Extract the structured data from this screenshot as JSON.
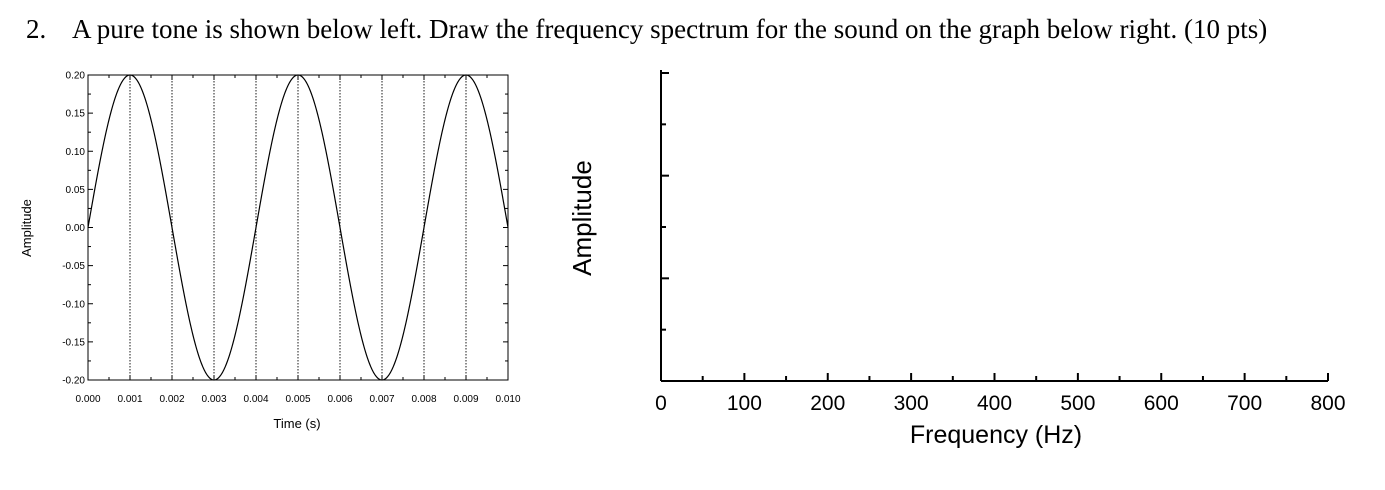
{
  "question": {
    "number": "2.",
    "text": "A pure tone is shown below left. Draw the frequency spectrum for the sound on the graph below right. (10 pts)"
  },
  "chart_data": [
    {
      "type": "line",
      "xlabel": "Time (s)",
      "ylabel": "Amplitude",
      "xlim": [
        0,
        0.01
      ],
      "ylim": [
        -0.2,
        0.2
      ],
      "xticks": [
        "0.000",
        "0.001",
        "0.002",
        "0.003",
        "0.004",
        "0.005",
        "0.006",
        "0.007",
        "0.008",
        "0.009",
        "0.010"
      ],
      "yticks": [
        "0.20",
        "0.15",
        "0.10",
        "0.05",
        "0.00",
        "-0.05",
        "-0.10",
        "-0.15",
        "-0.20"
      ],
      "series": [
        {
          "function": "0.20*sin(2*pi*250*t)",
          "amplitude": 0.2,
          "frequency_hz": 250
        }
      ],
      "grid": "vertical dotted lines at 0.001, 0.002, 0.003, 0.004, 0.005, 0.006, 0.007, 0.008, 0.009"
    },
    {
      "type": "line",
      "xlabel": "Frequency (Hz)",
      "ylabel": "Amplitude",
      "xlim": [
        0,
        800
      ],
      "xticks": [
        "0",
        "100",
        "200",
        "300",
        "400",
        "500",
        "600",
        "700",
        "800"
      ],
      "series": []
    }
  ]
}
